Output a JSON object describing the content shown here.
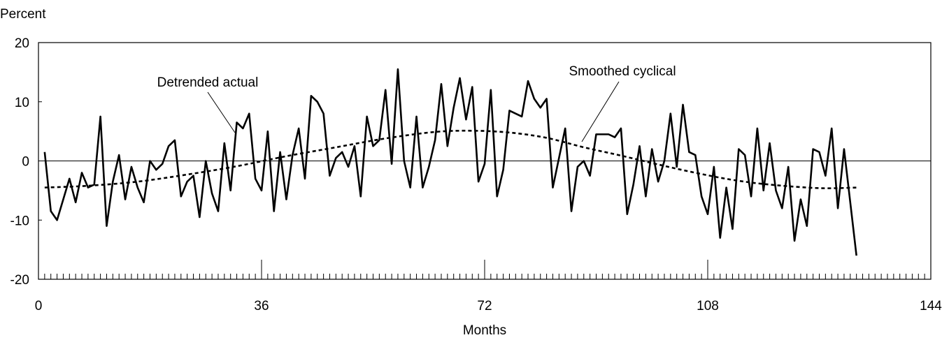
{
  "chart_data": {
    "type": "line",
    "title": "",
    "ylabel": "Percent",
    "xlabel": "Months",
    "xlim": [
      0,
      144
    ],
    "ylim": [
      -20,
      20
    ],
    "x_major_ticks": [
      0,
      36,
      72,
      108,
      144
    ],
    "x_minor_tick_step": 1,
    "y_ticks": [
      -20,
      -10,
      0,
      10,
      20
    ],
    "zero_line": true,
    "grid": false,
    "legend": "none",
    "annotations": [
      {
        "text": "Detrended actual",
        "series": "Detrended actual"
      },
      {
        "text": "Smoothed cyclical",
        "series": "Smoothed cyclical"
      }
    ],
    "series": [
      {
        "name": "Detrended actual",
        "style": "solid",
        "x_start": 1,
        "values": [
          1.5,
          -8.5,
          -10.0,
          -6.5,
          -3.0,
          -7.0,
          -2.0,
          -4.5,
          -4.0,
          7.5,
          -11.0,
          -3.5,
          1.0,
          -6.5,
          -1.0,
          -4.5,
          -7.0,
          0.0,
          -1.5,
          -0.5,
          2.5,
          3.5,
          -6.0,
          -3.5,
          -2.5,
          -9.5,
          0.0,
          -5.5,
          -8.5,
          3.0,
          -5.0,
          6.5,
          5.5,
          8.0,
          -3.0,
          -5.0,
          5.0,
          -8.5,
          1.5,
          -6.5,
          1.0,
          5.5,
          -3.0,
          11.0,
          10.0,
          8.0,
          -2.5,
          0.5,
          1.5,
          -1.0,
          2.5,
          -6.0,
          7.5,
          2.5,
          3.5,
          12.0,
          -0.5,
          15.5,
          0.0,
          -4.5,
          7.5,
          -4.5,
          -1.0,
          3.5,
          13.0,
          2.5,
          9.0,
          14.0,
          7.0,
          12.5,
          -3.5,
          -0.5,
          12.0,
          -6.0,
          -1.5,
          8.5,
          8.0,
          7.5,
          13.5,
          10.5,
          9.0,
          10.5,
          -4.5,
          0.5,
          5.5,
          -8.5,
          -1.0,
          0.0,
          -2.5,
          4.5,
          4.5,
          4.5,
          4.0,
          5.5,
          -9.0,
          -4.0,
          2.5,
          -6.0,
          2.0,
          -3.5,
          0.0,
          8.0,
          -1.0,
          9.5,
          1.5,
          1.0,
          -6.0,
          -9.0,
          -1.0,
          -13.0,
          -4.5,
          -11.5,
          2.0,
          1.0,
          -6.0,
          5.5,
          -5.0,
          3.0,
          -5.0,
          -8.0,
          -1.0,
          -13.5,
          -6.5,
          -11.0,
          2.0,
          1.5,
          -2.5,
          5.5,
          -8.0,
          2.0,
          -7.0,
          -16.0
        ]
      },
      {
        "name": "Smoothed cyclical",
        "style": "dashed",
        "x_start": 1,
        "curve": "smooth",
        "points": [
          [
            1,
            -4.5
          ],
          [
            8,
            -4.2
          ],
          [
            16,
            -3.5
          ],
          [
            24,
            -2.3
          ],
          [
            32,
            -0.9
          ],
          [
            40,
            0.8
          ],
          [
            48,
            2.3
          ],
          [
            56,
            3.8
          ],
          [
            64,
            4.9
          ],
          [
            70,
            5.1
          ],
          [
            76,
            4.8
          ],
          [
            82,
            3.9
          ],
          [
            88,
            2.3
          ],
          [
            94,
            0.9
          ],
          [
            100,
            -0.6
          ],
          [
            106,
            -2.0
          ],
          [
            112,
            -3.2
          ],
          [
            118,
            -4.0
          ],
          [
            126,
            -4.6
          ],
          [
            132,
            -4.5
          ]
        ]
      }
    ]
  }
}
